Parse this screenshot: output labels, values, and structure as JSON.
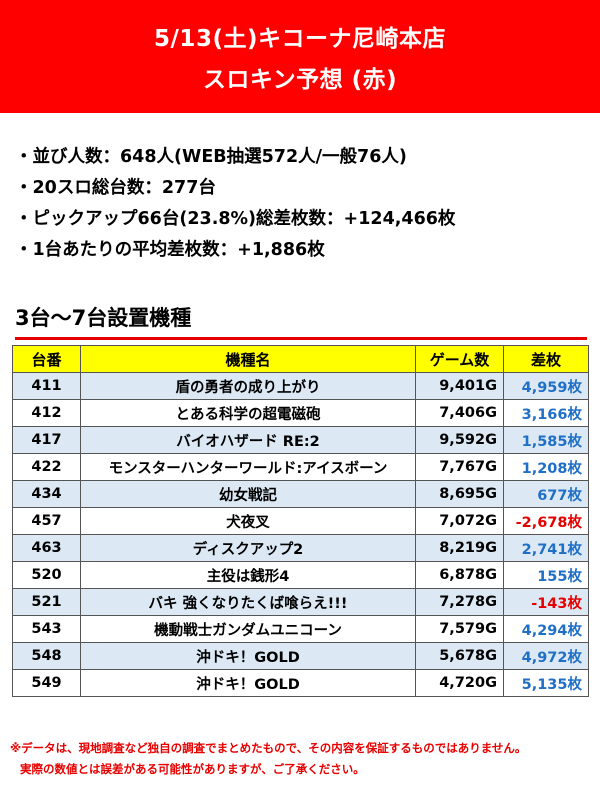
{
  "header": {
    "line1": "5/13(土)キコーナ尼崎本店",
    "line2": "スロキン予想 (赤)"
  },
  "stats": [
    "・並び人数：648人(WEB抽選572人/一般76人)",
    "・20スロ総台数：277台",
    "・ピックアップ66台(23.8%)総差枚数：+124,466枚",
    "・1台あたりの平均差枚数：+1,886枚"
  ],
  "section_title": "3台～7台設置機種",
  "table": {
    "headers": [
      "台番",
      "機種名",
      "ゲーム数",
      "差枚"
    ],
    "rows": [
      {
        "no": "411",
        "name": "盾の勇者の成り上がり",
        "games": "9,401G",
        "diff": "4,959枚",
        "sign": "pos"
      },
      {
        "no": "412",
        "name": "とある科学の超電磁砲",
        "games": "7,406G",
        "diff": "3,166枚",
        "sign": "pos"
      },
      {
        "no": "417",
        "name": "バイオハザード RE:2",
        "games": "9,592G",
        "diff": "1,585枚",
        "sign": "pos"
      },
      {
        "no": "422",
        "name": "モンスターハンターワールド:アイスボーン",
        "games": "7,767G",
        "diff": "1,208枚",
        "sign": "pos"
      },
      {
        "no": "434",
        "name": "幼女戦記",
        "games": "8,695G",
        "diff": "677枚",
        "sign": "pos"
      },
      {
        "no": "457",
        "name": "犬夜叉",
        "games": "7,072G",
        "diff": "-2,678枚",
        "sign": "neg"
      },
      {
        "no": "463",
        "name": "ディスクアップ2",
        "games": "8,219G",
        "diff": "2,741枚",
        "sign": "pos"
      },
      {
        "no": "520",
        "name": "主役は銭形4",
        "games": "6,878G",
        "diff": "155枚",
        "sign": "pos"
      },
      {
        "no": "521",
        "name": "バキ 強くなりたくば喰らえ!!!",
        "games": "7,278G",
        "diff": "-143枚",
        "sign": "neg"
      },
      {
        "no": "543",
        "name": "機動戦士ガンダムユニコーン",
        "games": "7,579G",
        "diff": "4,294枚",
        "sign": "pos"
      },
      {
        "no": "548",
        "name": "沖ドキ！GOLD",
        "games": "5,678G",
        "diff": "4,972枚",
        "sign": "pos"
      },
      {
        "no": "549",
        "name": "沖ドキ！GOLD",
        "games": "4,720G",
        "diff": "5,135枚",
        "sign": "pos"
      }
    ]
  },
  "notes": {
    "line1": "※データは、現地調査など独自の調査でまとめたもので、その内容を保証するものではありません。",
    "line2": "実際の数値とは誤差がある可能性がありますが、ご了承ください。"
  },
  "colors": {
    "banner": "#ff0000",
    "header_row": "#ffff00",
    "shaded_row": "#dce9f5",
    "positive": "#1f6fc7",
    "negative": "#e60000"
  }
}
